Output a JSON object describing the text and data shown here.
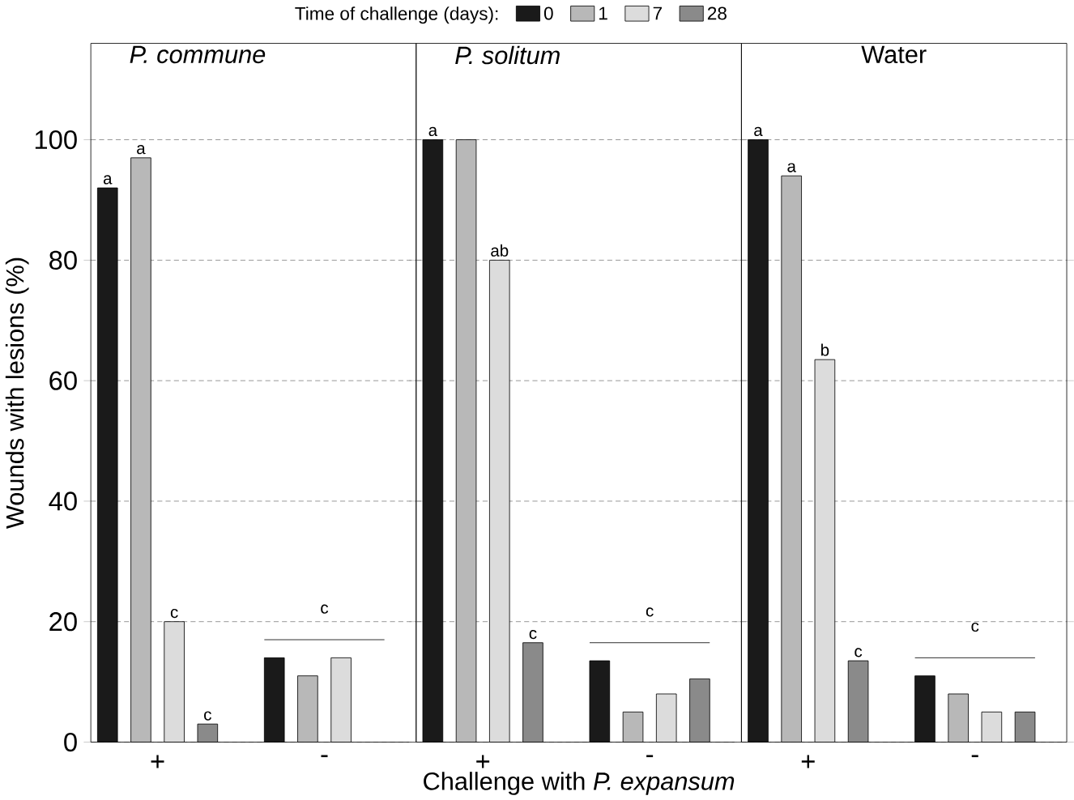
{
  "chart_data": [
    {
      "type": "bar",
      "title": "*P. commune*",
      "ylabel": "Wounds with lesions (%)",
      "legend_title": "Time of challenge (days):",
      "categories": [
        "+",
        "-"
      ],
      "series": [
        {
          "name": "0",
          "color": "#1a1a1a",
          "values": [
            92,
            14
          ],
          "value_labels": [
            "a",
            null
          ]
        },
        {
          "name": "1",
          "color": "#b8b8b8",
          "values": [
            97,
            11
          ],
          "value_labels": [
            "a",
            null
          ]
        },
        {
          "name": "7",
          "color": "#dcdcdc",
          "values": [
            20,
            14
          ],
          "value_labels": [
            "c",
            null
          ]
        },
        {
          "name": "28",
          "color": "#8a8a8a",
          "values": [
            3,
            null
          ],
          "value_labels": [
            "c",
            null
          ]
        }
      ],
      "ylim": [
        0,
        116
      ],
      "yticks": [
        0,
        20,
        40,
        60,
        80,
        100
      ],
      "grid": "y",
      "legend": "top",
      "annotations": [
        "c"
      ]
    },
    {
      "type": "bar",
      "title": "*P. solitum*",
      "xlabel": "Challenge with *P. expansum*",
      "categories": [
        "+",
        "-"
      ],
      "series": [
        {
          "color": "#1a1a1a",
          "values": [
            100,
            13.5
          ],
          "value_labels": [
            "a",
            null
          ]
        },
        {
          "color": "#b8b8b8",
          "values": [
            100,
            5
          ],
          "value_labels": [
            null,
            null
          ]
        },
        {
          "color": "#dcdcdc",
          "values": [
            80,
            8
          ],
          "value_labels": [
            "ab",
            null
          ]
        },
        {
          "color": "#8a8a8a",
          "values": [
            16.5,
            10.5
          ],
          "value_labels": [
            "c",
            null
          ]
        }
      ],
      "ylim": [
        0,
        116
      ],
      "yticks": [
        0,
        20,
        40,
        60,
        80,
        100
      ],
      "grid": "y",
      "tick_labels": "x",
      "annotations": [
        "c"
      ]
    },
    {
      "type": "bar",
      "title": "Water",
      "categories": [
        "+",
        "-"
      ],
      "series": [
        {
          "color": "#1a1a1a",
          "values": [
            100,
            11
          ],
          "value_labels": [
            "a",
            null
          ]
        },
        {
          "color": "#b8b8b8",
          "values": [
            94,
            8
          ],
          "value_labels": [
            "a",
            null
          ]
        },
        {
          "color": "#dcdcdc",
          "values": [
            63.5,
            5
          ],
          "value_labels": [
            "b",
            null
          ]
        },
        {
          "color": "#8a8a8a",
          "values": [
            13.5,
            5
          ],
          "value_labels": [
            "c",
            null
          ]
        }
      ],
      "ylim": [
        0,
        116
      ],
      "yticks": [
        0,
        20,
        40,
        60,
        80,
        100
      ],
      "grid": "y",
      "tick_labels": "x",
      "annotations": [
        "c"
      ]
    }
  ]
}
